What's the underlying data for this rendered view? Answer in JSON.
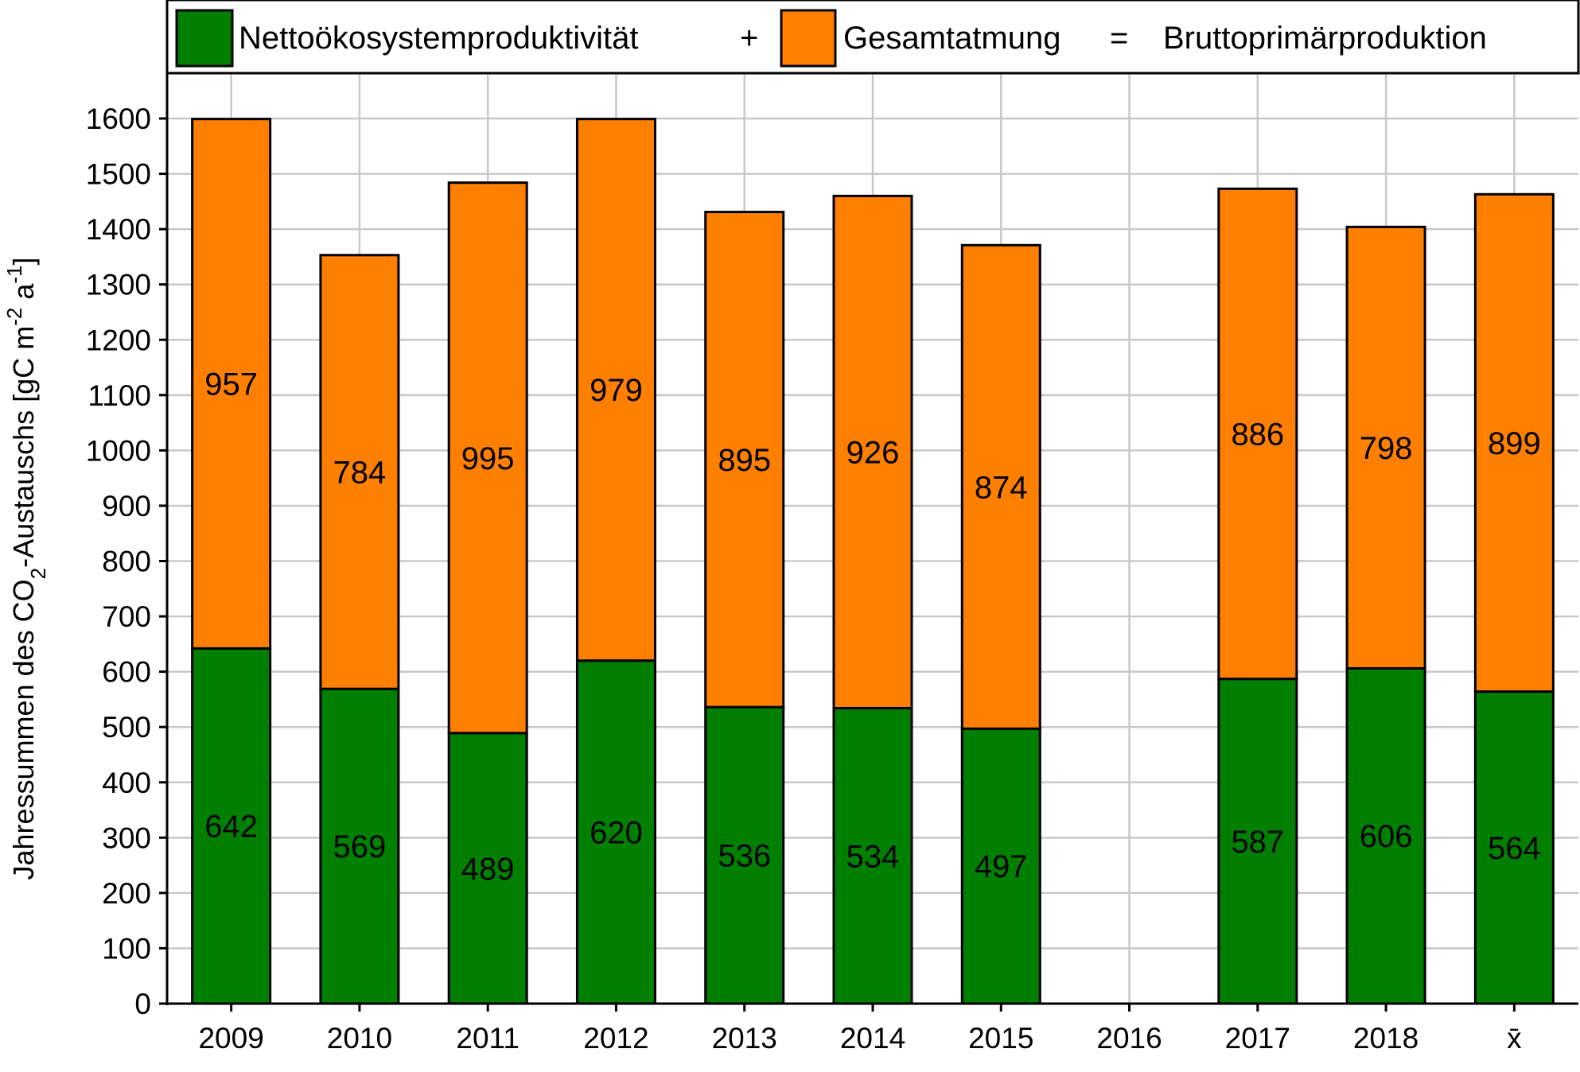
{
  "chart_data": {
    "type": "bar",
    "stacked": true,
    "categories": [
      "2009",
      "2010",
      "2011",
      "2012",
      "2013",
      "2014",
      "2015",
      "2016",
      "2017",
      "2018",
      "x̄"
    ],
    "series": [
      {
        "name": "Nettoökosystemproduktivität",
        "color": "#007f00",
        "values": [
          642,
          569,
          489,
          620,
          536,
          534,
          497,
          null,
          587,
          606,
          564
        ]
      },
      {
        "name": "Gesamtatmung",
        "color": "#ff7f00",
        "values": [
          957,
          784,
          995,
          979,
          895,
          926,
          874,
          null,
          886,
          798,
          899
        ]
      }
    ],
    "legend": {
      "items": [
        "Nettoökosystemproduktivität",
        "+",
        "Gesamtatmung",
        "=",
        "Bruttoprimärproduktion"
      ],
      "placement": "top"
    },
    "ylabel": {
      "main": "Jahressummen des CO",
      "sub": "2",
      "rest": "-Austauschs [gC m",
      "sup1": "-2",
      "mid": " a",
      "sup2": "-1",
      "end": "]"
    },
    "ylim": [
      0,
      1650
    ],
    "yticks": [
      0,
      100,
      200,
      300,
      400,
      500,
      600,
      700,
      800,
      900,
      1000,
      1100,
      1200,
      1300,
      1400,
      1500,
      1600
    ],
    "grid": true,
    "colors": {
      "nep": "#007f00",
      "resp": "#ff7f00",
      "grid": "#c8c8c8"
    }
  }
}
